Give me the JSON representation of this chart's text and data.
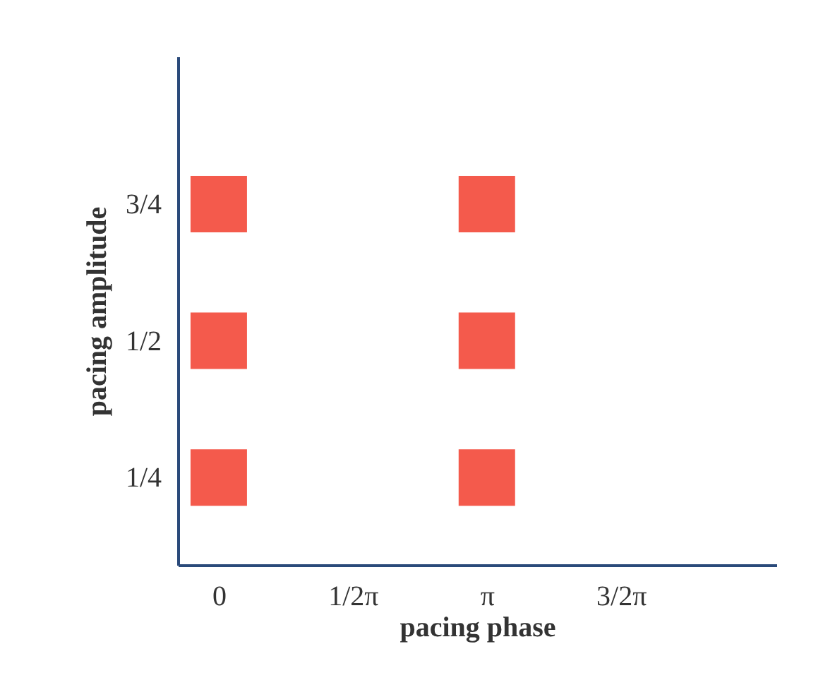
{
  "chart_data": {
    "type": "scatter",
    "xlabel": "pacing phase",
    "ylabel": "pacing amplitude",
    "marker": "square",
    "grid": false,
    "categories": [
      "0",
      "1/2π",
      "π",
      "3/2π"
    ],
    "series": [
      {
        "color": "#f45a4c",
        "x": [
          "0",
          "0",
          "0",
          "π",
          "π",
          "π"
        ],
        "values": [
          0.25,
          0.5,
          0.75,
          0.25,
          0.5,
          0.75
        ]
      }
    ],
    "ylim": [
      0.09,
      1.02
    ],
    "yticks": [
      {
        "value": 0.25,
        "label": "1/4"
      },
      {
        "value": 0.5,
        "label": "1/2"
      },
      {
        "value": 0.75,
        "label": "3/4"
      }
    ]
  }
}
